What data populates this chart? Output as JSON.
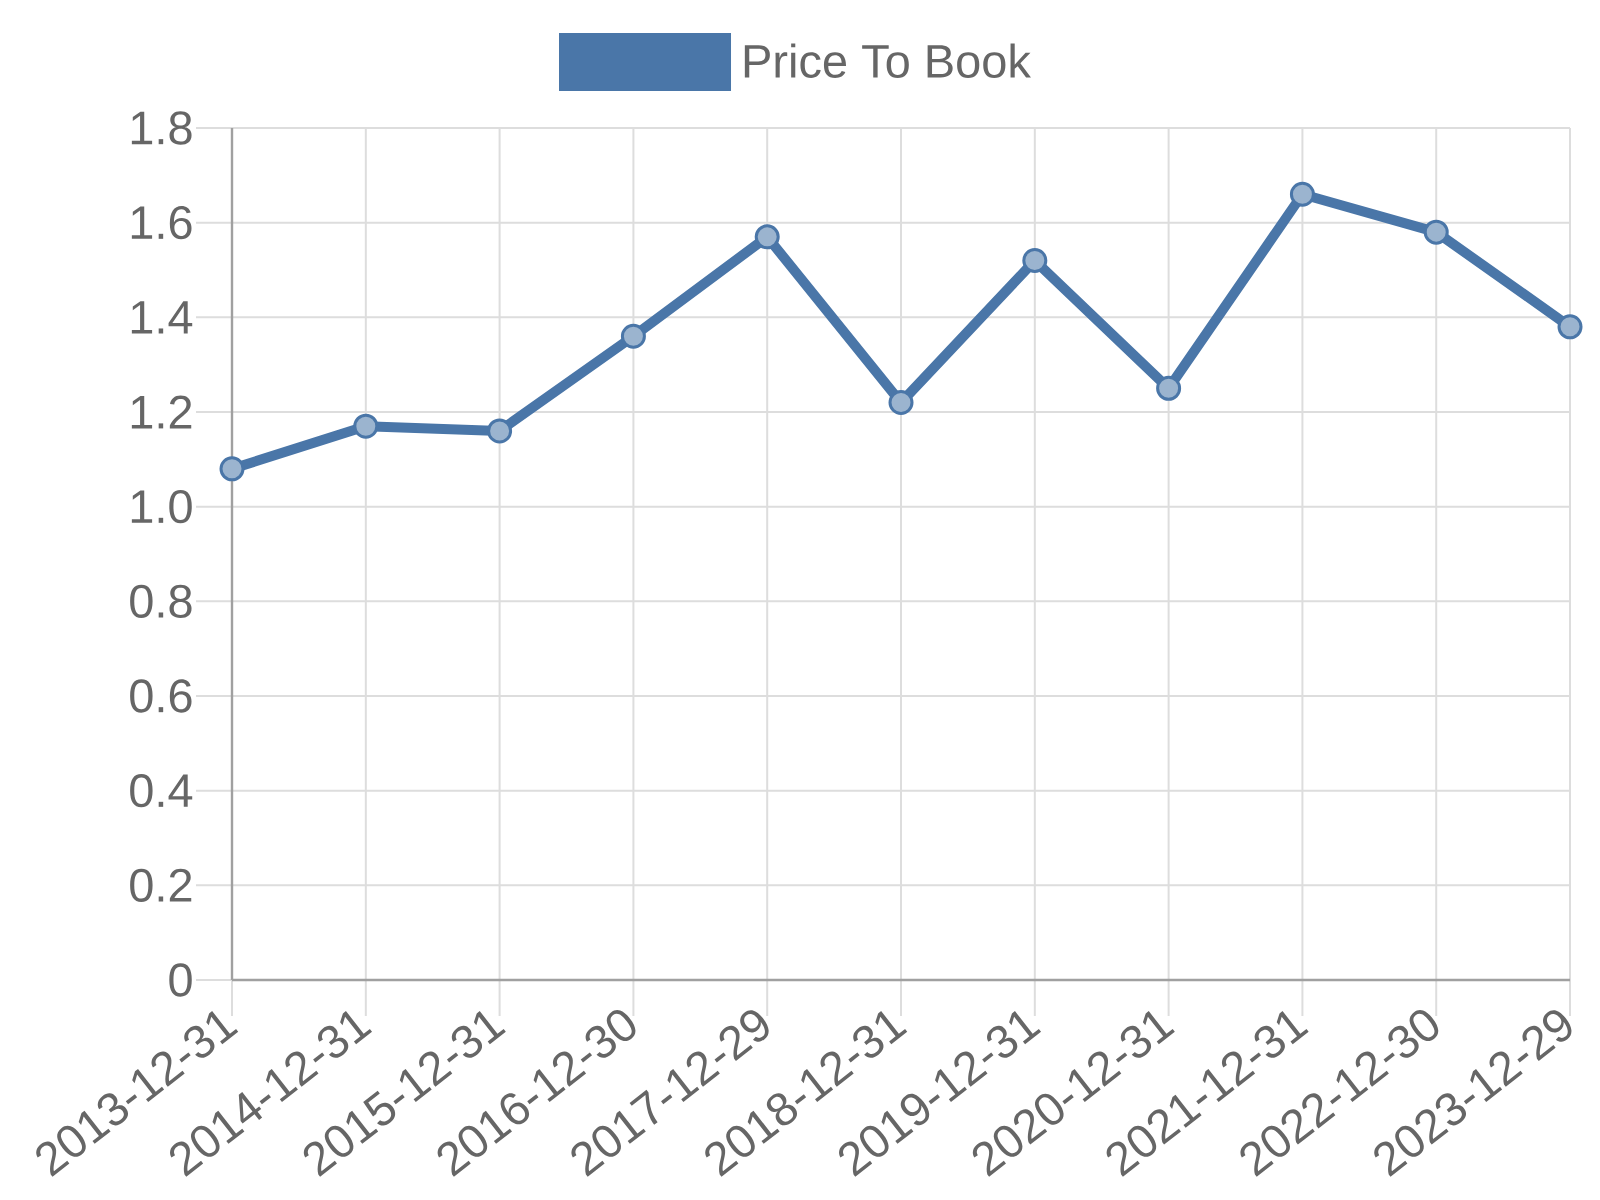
{
  "chart_data": {
    "type": "line",
    "categories": [
      "2013-12-31",
      "2014-12-31",
      "2015-12-31",
      "2016-12-30",
      "2017-12-29",
      "2018-12-31",
      "2019-12-31",
      "2020-12-31",
      "2021-12-31",
      "2022-12-30",
      "2023-12-29"
    ],
    "series": [
      {
        "name": "Price To Book",
        "color": "#4a76a8",
        "values": [
          1.08,
          1.17,
          1.16,
          1.36,
          1.57,
          1.22,
          1.52,
          1.25,
          1.66,
          1.58,
          1.38
        ]
      }
    ],
    "ylim": [
      0,
      1.8
    ],
    "yticks": [
      0,
      0.2,
      0.4,
      0.6,
      0.8,
      {
        "value": 1,
        "label": "1.0"
      },
      1.2,
      1.4,
      1.6,
      1.8
    ],
    "grid": true,
    "legend": "top",
    "marker": "circle",
    "line_style": "solid"
  }
}
